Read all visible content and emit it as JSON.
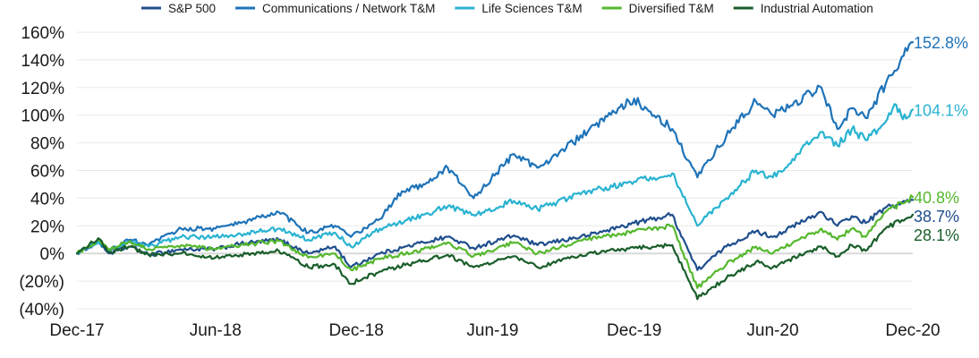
{
  "chart_data": {
    "type": "line",
    "title": "",
    "xlabel": "",
    "ylabel": "",
    "ylim": [
      -40,
      160
    ],
    "y_ticks": [
      {
        "value": 160,
        "label": "160%"
      },
      {
        "value": 140,
        "label": "140%"
      },
      {
        "value": 120,
        "label": "120%"
      },
      {
        "value": 100,
        "label": "100%"
      },
      {
        "value": 80,
        "label": "80%"
      },
      {
        "value": 60,
        "label": "60%"
      },
      {
        "value": 40,
        "label": "40%"
      },
      {
        "value": 20,
        "label": "20%"
      },
      {
        "value": 0,
        "label": "0%"
      },
      {
        "value": -20,
        "label": "(20%)"
      },
      {
        "value": -40,
        "label": "(40%)"
      }
    ],
    "x_ticks": [
      {
        "value": "2017-12-29",
        "label": "Dec-17"
      },
      {
        "value": "2018-06-29",
        "label": "Jun-18"
      },
      {
        "value": "2018-12-31",
        "label": "Dec-18"
      },
      {
        "value": "2019-06-28",
        "label": "Jun-19"
      },
      {
        "value": "2019-12-31",
        "label": "Dec-19"
      },
      {
        "value": "2020-06-30",
        "label": "Jun-20"
      },
      {
        "value": "2020-12-31",
        "label": "Dec-20"
      }
    ],
    "x_range": [
      "2017-12-29",
      "2020-12-31"
    ],
    "grid": true,
    "legend_position": "top",
    "series": [
      {
        "name": "S&P 500",
        "color": "#1f4e8c",
        "end_label": "38.7%",
        "points": [
          [
            "2017-12-29",
            0
          ],
          [
            "2018-01-26",
            9
          ],
          [
            "2018-02-09",
            0
          ],
          [
            "2018-03-09",
            5
          ],
          [
            "2018-04-02",
            -1
          ],
          [
            "2018-05-15",
            3
          ],
          [
            "2018-06-29",
            3
          ],
          [
            "2018-08-01",
            7
          ],
          [
            "2018-09-20",
            10
          ],
          [
            "2018-10-29",
            0
          ],
          [
            "2018-12-03",
            5
          ],
          [
            "2018-12-24",
            -10
          ],
          [
            "2019-01-31",
            0
          ],
          [
            "2019-03-29",
            8
          ],
          [
            "2019-04-30",
            12
          ],
          [
            "2019-06-03",
            4
          ],
          [
            "2019-07-26",
            13
          ],
          [
            "2019-08-26",
            6
          ],
          [
            "2019-10-31",
            13
          ],
          [
            "2019-12-31",
            22
          ],
          [
            "2020-02-19",
            28
          ],
          [
            "2020-03-23",
            -12
          ],
          [
            "2020-04-30",
            5
          ],
          [
            "2020-06-08",
            16
          ],
          [
            "2020-06-30",
            12
          ],
          [
            "2020-09-02",
            30
          ],
          [
            "2020-09-23",
            20
          ],
          [
            "2020-10-12",
            27
          ],
          [
            "2020-10-30",
            22
          ],
          [
            "2020-11-25",
            33
          ],
          [
            "2020-12-31",
            38.7
          ]
        ]
      },
      {
        "name": "Communications / Network T&M",
        "color": "#1e73b8",
        "end_label": "152.8%",
        "points": [
          [
            "2017-12-29",
            0
          ],
          [
            "2018-01-26",
            8
          ],
          [
            "2018-02-09",
            2
          ],
          [
            "2018-03-09",
            10
          ],
          [
            "2018-04-02",
            6
          ],
          [
            "2018-05-15",
            18
          ],
          [
            "2018-06-29",
            18
          ],
          [
            "2018-08-01",
            22
          ],
          [
            "2018-09-20",
            30
          ],
          [
            "2018-10-29",
            15
          ],
          [
            "2018-12-03",
            20
          ],
          [
            "2018-12-24",
            12
          ],
          [
            "2019-01-31",
            25
          ],
          [
            "2019-03-01",
            45
          ],
          [
            "2019-03-29",
            50
          ],
          [
            "2019-04-30",
            62
          ],
          [
            "2019-06-03",
            40
          ],
          [
            "2019-07-26",
            72
          ],
          [
            "2019-08-26",
            62
          ],
          [
            "2019-10-31",
            88
          ],
          [
            "2019-12-31",
            112
          ],
          [
            "2020-02-19",
            90
          ],
          [
            "2020-03-23",
            55
          ],
          [
            "2020-04-30",
            85
          ],
          [
            "2020-06-08",
            110
          ],
          [
            "2020-06-30",
            100
          ],
          [
            "2020-09-02",
            120
          ],
          [
            "2020-09-23",
            90
          ],
          [
            "2020-10-12",
            105
          ],
          [
            "2020-10-30",
            98
          ],
          [
            "2020-11-25",
            122
          ],
          [
            "2020-12-31",
            152.8
          ]
        ]
      },
      {
        "name": "Life Sciences T&M",
        "color": "#29b3d1",
        "end_label": "104.1%",
        "points": [
          [
            "2017-12-29",
            0
          ],
          [
            "2018-01-26",
            9
          ],
          [
            "2018-02-09",
            2
          ],
          [
            "2018-03-09",
            8
          ],
          [
            "2018-04-02",
            5
          ],
          [
            "2018-05-15",
            12
          ],
          [
            "2018-06-29",
            12
          ],
          [
            "2018-08-01",
            14
          ],
          [
            "2018-09-20",
            18
          ],
          [
            "2018-10-29",
            10
          ],
          [
            "2018-12-03",
            15
          ],
          [
            "2018-12-24",
            5
          ],
          [
            "2019-01-31",
            18
          ],
          [
            "2019-03-29",
            28
          ],
          [
            "2019-04-30",
            34
          ],
          [
            "2019-06-03",
            28
          ],
          [
            "2019-07-26",
            38
          ],
          [
            "2019-08-26",
            32
          ],
          [
            "2019-10-31",
            45
          ],
          [
            "2019-12-31",
            52
          ],
          [
            "2020-02-19",
            58
          ],
          [
            "2020-03-23",
            20
          ],
          [
            "2020-04-30",
            40
          ],
          [
            "2020-06-08",
            60
          ],
          [
            "2020-06-30",
            55
          ],
          [
            "2020-09-02",
            88
          ],
          [
            "2020-09-23",
            78
          ],
          [
            "2020-10-12",
            90
          ],
          [
            "2020-10-30",
            82
          ],
          [
            "2020-11-25",
            95
          ],
          [
            "2020-12-07",
            108
          ],
          [
            "2020-12-18",
            97
          ],
          [
            "2020-12-31",
            104.1
          ]
        ]
      },
      {
        "name": "Diversified T&M",
        "color": "#55b82d",
        "end_label": "40.8%",
        "points": [
          [
            "2017-12-29",
            0
          ],
          [
            "2018-01-26",
            10
          ],
          [
            "2018-02-09",
            3
          ],
          [
            "2018-03-09",
            9
          ],
          [
            "2018-04-02",
            3
          ],
          [
            "2018-05-15",
            6
          ],
          [
            "2018-06-29",
            3
          ],
          [
            "2018-08-01",
            6
          ],
          [
            "2018-09-20",
            9
          ],
          [
            "2018-10-29",
            -3
          ],
          [
            "2018-12-03",
            0
          ],
          [
            "2018-12-24",
            -12
          ],
          [
            "2019-01-31",
            -4
          ],
          [
            "2019-03-29",
            3
          ],
          [
            "2019-04-30",
            8
          ],
          [
            "2019-06-03",
            -2
          ],
          [
            "2019-07-26",
            8
          ],
          [
            "2019-08-26",
            0
          ],
          [
            "2019-10-31",
            10
          ],
          [
            "2019-12-31",
            16
          ],
          [
            "2020-02-19",
            20
          ],
          [
            "2020-03-23",
            -25
          ],
          [
            "2020-04-30",
            -8
          ],
          [
            "2020-06-08",
            5
          ],
          [
            "2020-06-30",
            0
          ],
          [
            "2020-09-02",
            18
          ],
          [
            "2020-09-23",
            10
          ],
          [
            "2020-10-12",
            18
          ],
          [
            "2020-10-30",
            12
          ],
          [
            "2020-11-25",
            30
          ],
          [
            "2020-12-31",
            40.8
          ]
        ]
      },
      {
        "name": "Industrial Automation",
        "color": "#1a5e2a",
        "end_label": "28.1%",
        "points": [
          [
            "2017-12-29",
            0
          ],
          [
            "2018-01-26",
            11
          ],
          [
            "2018-02-09",
            1
          ],
          [
            "2018-03-09",
            5
          ],
          [
            "2018-04-02",
            -1
          ],
          [
            "2018-05-15",
            0
          ],
          [
            "2018-06-29",
            -3
          ],
          [
            "2018-08-01",
            -1
          ],
          [
            "2018-09-20",
            2
          ],
          [
            "2018-10-29",
            -10
          ],
          [
            "2018-12-03",
            -8
          ],
          [
            "2018-12-24",
            -22
          ],
          [
            "2019-01-31",
            -13
          ],
          [
            "2019-03-29",
            -5
          ],
          [
            "2019-04-30",
            -1
          ],
          [
            "2019-06-03",
            -10
          ],
          [
            "2019-07-26",
            -2
          ],
          [
            "2019-08-26",
            -10
          ],
          [
            "2019-10-31",
            0
          ],
          [
            "2019-12-31",
            4
          ],
          [
            "2020-02-19",
            6
          ],
          [
            "2020-03-23",
            -33
          ],
          [
            "2020-04-30",
            -18
          ],
          [
            "2020-06-08",
            -6
          ],
          [
            "2020-06-30",
            -10
          ],
          [
            "2020-09-02",
            5
          ],
          [
            "2020-09-23",
            -2
          ],
          [
            "2020-10-12",
            6
          ],
          [
            "2020-10-30",
            2
          ],
          [
            "2020-11-25",
            18
          ],
          [
            "2020-12-31",
            28.1
          ]
        ]
      }
    ]
  }
}
